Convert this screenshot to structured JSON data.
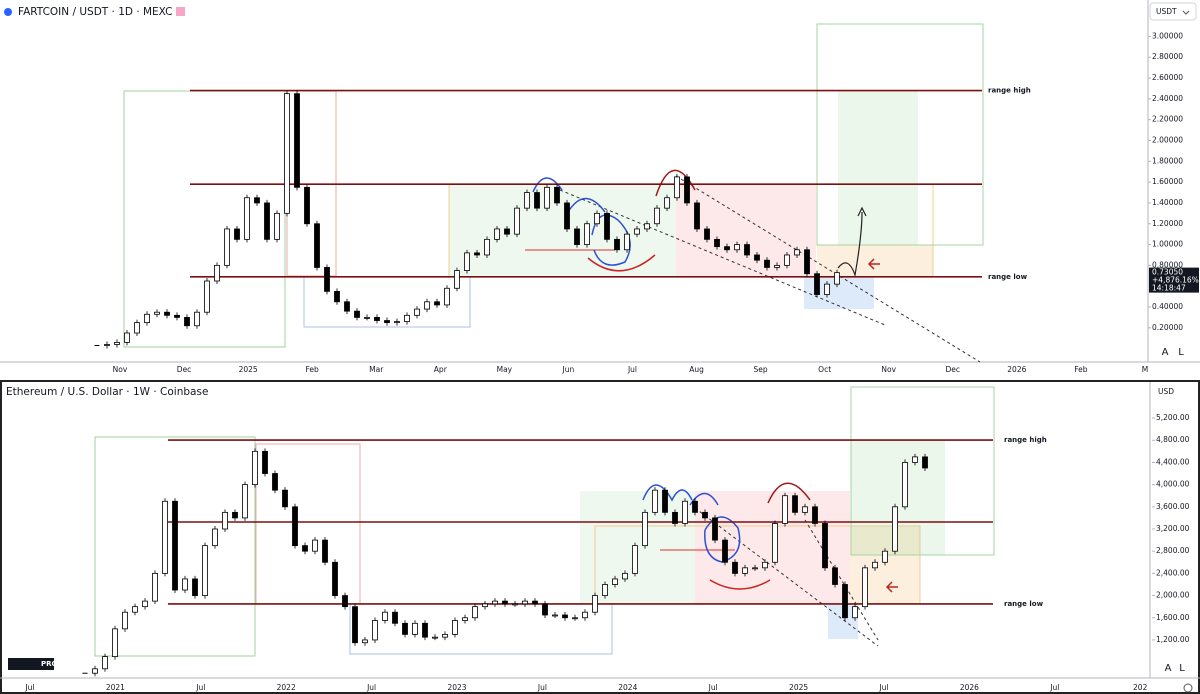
{
  "chart_data": [
    {
      "type": "candlestick",
      "title": "FARTCOIN / USDT · 1D · MEXC",
      "currency": "USDT",
      "closes": [
        0.03,
        0.04,
        0.06,
        0.15,
        0.25,
        0.33,
        0.35,
        0.32,
        0.3,
        0.22,
        0.35,
        0.65,
        0.8,
        1.15,
        1.05,
        1.45,
        1.4,
        1.05,
        1.3,
        2.45,
        1.55,
        1.2,
        0.78,
        0.55,
        0.45,
        0.36,
        0.3,
        0.3,
        0.27,
        0.25,
        0.26,
        0.32,
        0.38,
        0.45,
        0.42,
        0.58,
        0.75,
        0.92,
        0.9,
        1.05,
        1.15,
        1.1,
        1.35,
        1.5,
        1.35,
        1.55,
        1.4,
        1.15,
        1.0,
        1.2,
        1.3,
        1.05,
        0.95,
        1.1,
        1.15,
        1.2,
        1.35,
        1.45,
        1.65,
        1.4,
        1.15,
        1.05,
        0.98,
        0.95,
        1.0,
        0.9,
        0.85,
        0.78,
        0.8,
        0.9,
        0.95,
        0.72,
        0.52,
        0.62,
        0.73
      ],
      "ylim": [
        -0.09,
        3.35
      ],
      "yticks": [
        {
          "value": 3.0,
          "label": "3.00000"
        },
        {
          "value": 2.8,
          "label": "2.80000"
        },
        {
          "value": 2.6,
          "label": "2.60000"
        },
        {
          "value": 2.4,
          "label": "2.40000"
        },
        {
          "value": 2.2,
          "label": "2.20000"
        },
        {
          "value": 2.0,
          "label": "2.00000"
        },
        {
          "value": 1.8,
          "label": "1.80000"
        },
        {
          "value": 1.6,
          "label": "1.60000"
        },
        {
          "value": 1.4,
          "label": "1.40000"
        },
        {
          "value": 1.2,
          "label": "1.20000"
        },
        {
          "value": 1.0,
          "label": "1.00000"
        },
        {
          "value": 0.8,
          "label": "0.80000"
        },
        {
          "value": 0.4,
          "label": "0.40000"
        },
        {
          "value": 0.2,
          "label": "0.20000"
        }
      ],
      "xticks": [
        "Nov",
        "Dec",
        "2025",
        "Feb",
        "Mar",
        "Apr",
        "May",
        "Jun",
        "Jul",
        "Aug",
        "Sep",
        "Oct",
        "Nov",
        "Dec",
        "2026",
        "Feb",
        "M"
      ],
      "levels": [
        {
          "value": 2.48,
          "label": "range high"
        },
        {
          "value": 1.58
        },
        {
          "value": 0.69,
          "label": "range low"
        }
      ],
      "last_price": {
        "value": 0.7305,
        "label": "0.73050",
        "change": "+4,876.16%",
        "countdown": "14:18:47"
      },
      "scale_buttons": [
        "A",
        "L"
      ],
      "grid": false
    },
    {
      "type": "candlestick",
      "title": "Ethereum / U.S. Dollar · 1W · Coinbase",
      "currency": "USD",
      "closes": [
        600,
        680,
        900,
        1400,
        1700,
        1800,
        1900,
        2400,
        3700,
        2100,
        2300,
        2000,
        2900,
        3200,
        3500,
        3400,
        4000,
        4600,
        4200,
        3900,
        3600,
        2900,
        2800,
        3000,
        2600,
        2000,
        1800,
        1150,
        1200,
        1550,
        1700,
        1500,
        1300,
        1500,
        1250,
        1250,
        1300,
        1550,
        1600,
        1800,
        1850,
        1900,
        1850,
        1850,
        1900,
        1850,
        1650,
        1650,
        1600,
        1600,
        1700,
        2000,
        2200,
        2300,
        2400,
        2900,
        3500,
        3900,
        3500,
        3300,
        3700,
        3500,
        3400,
        3000,
        2600,
        2400,
        2500,
        2500,
        2600,
        3300,
        3800,
        3500,
        3600,
        3300,
        2500,
        2200,
        1600,
        1800,
        2500,
        2600,
        2800,
        3600,
        4400,
        4500,
        4300
      ],
      "ylim": [
        550,
        5850
      ],
      "yticks": [
        {
          "value": 5200,
          "label": "5,200.00"
        },
        {
          "value": 4800,
          "label": "4,800.00"
        },
        {
          "value": 4400,
          "label": "4,400.00"
        },
        {
          "value": 4000,
          "label": "4,000.00"
        },
        {
          "value": 3600,
          "label": "3,600.00"
        },
        {
          "value": 3200,
          "label": "3,200.00"
        },
        {
          "value": 2800,
          "label": "2,800.00"
        },
        {
          "value": 2400,
          "label": "2,400.00"
        },
        {
          "value": 2000,
          "label": "2,000.00"
        },
        {
          "value": 1600,
          "label": "1,600.00"
        },
        {
          "value": 1200,
          "label": "1,200.00"
        }
      ],
      "xticks": [
        "Jul",
        "2021",
        "Jul",
        "2022",
        "Jul",
        "2023",
        "Jul",
        "2024",
        "Jul",
        "2025",
        "Jul",
        "2026",
        "Jul",
        "202"
      ],
      "levels": [
        {
          "value": 4804,
          "label": "range high"
        },
        {
          "value": 3326
        },
        {
          "value": 1849,
          "label": "range low"
        }
      ],
      "scale_buttons": [
        "A",
        "L"
      ],
      "logo": "PRO",
      "grid": false
    }
  ]
}
